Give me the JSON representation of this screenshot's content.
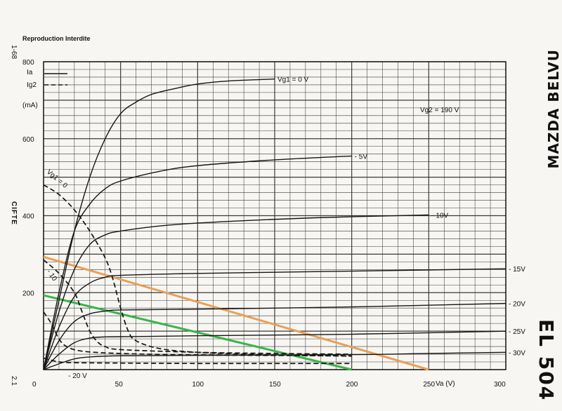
{
  "header": {
    "reproduction": "Reproduction Interdite",
    "code_top": "1-68",
    "code_bottom": "2.1",
    "side_label": "CIFTE"
  },
  "brand": {
    "name": "MAZDA BELVU",
    "tube": "EL 504"
  },
  "colors": {
    "grid": "#3a3a3a",
    "curve": "#161616",
    "orange_line": "#e9a058",
    "green_line": "#3ab54a"
  },
  "chart_data": {
    "type": "line",
    "xlabel": "Va (V)",
    "ylabel": "(mA)",
    "xlim": [
      0,
      300
    ],
    "ylim": [
      0,
      800
    ],
    "x_ticks": [
      "0",
      "50",
      "100",
      "150",
      "200",
      "250"
    ],
    "x_tick_values": [
      0,
      50,
      100,
      150,
      200,
      250
    ],
    "x_last_tick": "300",
    "y_ticks": [
      "200",
      "400",
      "600",
      "800"
    ],
    "y_tick_values": [
      200,
      400,
      600,
      800
    ],
    "legend": {
      "ia_label": "Ia",
      "ig2_label": "Ig2"
    },
    "vg2_label": "Vg2 = 190 V",
    "vg1_zero_label": "Vg1 = 0",
    "ia_curves": [
      {
        "label": "Vg1 = 0 V",
        "points": [
          [
            0,
            0
          ],
          [
            10,
            180
          ],
          [
            20,
            360
          ],
          [
            30,
            500
          ],
          [
            40,
            600
          ],
          [
            50,
            665
          ],
          [
            60,
            695
          ],
          [
            70,
            715
          ],
          [
            85,
            730
          ],
          [
            100,
            742
          ],
          [
            120,
            750
          ],
          [
            150,
            755
          ]
        ]
      },
      {
        "label": "- 5V",
        "points": [
          [
            0,
            0
          ],
          [
            10,
            200
          ],
          [
            20,
            360
          ],
          [
            30,
            430
          ],
          [
            40,
            470
          ],
          [
            50,
            490
          ],
          [
            75,
            515
          ],
          [
            100,
            530
          ],
          [
            150,
            545
          ],
          [
            200,
            555
          ]
        ]
      },
      {
        "label": "- 10V",
        "points": [
          [
            0,
            0
          ],
          [
            10,
            150
          ],
          [
            20,
            260
          ],
          [
            30,
            325
          ],
          [
            40,
            350
          ],
          [
            50,
            360
          ],
          [
            80,
            375
          ],
          [
            120,
            385
          ],
          [
            180,
            395
          ],
          [
            250,
            402
          ]
        ]
      },
      {
        "label": "- 15V",
        "points": [
          [
            0,
            0
          ],
          [
            10,
            110
          ],
          [
            20,
            190
          ],
          [
            30,
            225
          ],
          [
            40,
            240
          ],
          [
            50,
            245
          ],
          [
            100,
            250
          ],
          [
            150,
            253
          ],
          [
            200,
            256
          ],
          [
            300,
            262
          ]
        ]
      },
      {
        "label": "- 20V",
        "points": [
          [
            0,
            0
          ],
          [
            10,
            75
          ],
          [
            20,
            125
          ],
          [
            30,
            145
          ],
          [
            40,
            152
          ],
          [
            50,
            155
          ],
          [
            100,
            157
          ],
          [
            200,
            163
          ],
          [
            300,
            172
          ]
        ]
      },
      {
        "label": "- 25V",
        "points": [
          [
            0,
            0
          ],
          [
            10,
            40
          ],
          [
            20,
            70
          ],
          [
            30,
            82
          ],
          [
            40,
            85
          ],
          [
            60,
            86
          ],
          [
            100,
            88
          ],
          [
            200,
            92
          ],
          [
            300,
            100
          ]
        ]
      },
      {
        "label": "- 30V",
        "points": [
          [
            0,
            0
          ],
          [
            10,
            15
          ],
          [
            20,
            28
          ],
          [
            30,
            33
          ],
          [
            50,
            36
          ],
          [
            100,
            37
          ],
          [
            200,
            39
          ],
          [
            250,
            42
          ],
          [
            300,
            45
          ]
        ]
      }
    ],
    "ig2_curves": [
      {
        "label": "Vg1 = 0",
        "points": [
          [
            0,
            480
          ],
          [
            10,
            455
          ],
          [
            20,
            415
          ],
          [
            30,
            360
          ],
          [
            40,
            290
          ],
          [
            45,
            235
          ],
          [
            50,
            160
          ],
          [
            55,
            100
          ],
          [
            60,
            75
          ],
          [
            75,
            55
          ],
          [
            100,
            45
          ],
          [
            150,
            38
          ],
          [
            200,
            35
          ]
        ]
      },
      {
        "label": "- 10",
        "points": [
          [
            0,
            285
          ],
          [
            10,
            250
          ],
          [
            20,
            200
          ],
          [
            25,
            150
          ],
          [
            30,
            100
          ],
          [
            35,
            72
          ],
          [
            40,
            60
          ],
          [
            50,
            52
          ],
          [
            100,
            45
          ],
          [
            150,
            42
          ],
          [
            200,
            40
          ]
        ]
      },
      {
        "label": "",
        "points": [
          [
            0,
            150
          ],
          [
            5,
            120
          ],
          [
            10,
            80
          ],
          [
            15,
            60
          ],
          [
            25,
            48
          ],
          [
            50,
            42
          ],
          [
            100,
            38
          ],
          [
            200,
            36
          ]
        ]
      },
      {
        "label": "- 20 V",
        "points": [
          [
            0,
            30
          ],
          [
            10,
            20
          ],
          [
            20,
            18
          ],
          [
            50,
            17
          ],
          [
            100,
            16
          ],
          [
            200,
            16
          ]
        ]
      }
    ],
    "load_lines": [
      {
        "color": "orange",
        "points": [
          [
            0,
            293
          ],
          [
            250,
            0
          ]
        ]
      },
      {
        "color": "green",
        "points": [
          [
            0,
            193
          ],
          [
            200,
            0
          ]
        ]
      }
    ]
  }
}
